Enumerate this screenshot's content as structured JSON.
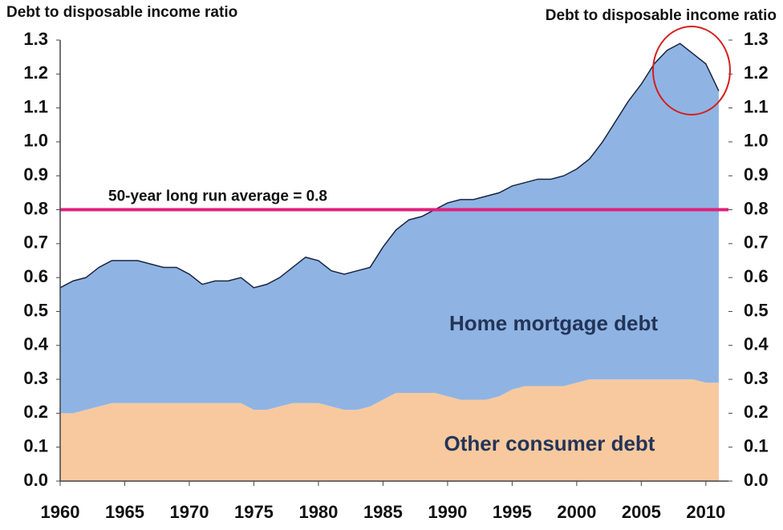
{
  "chart_data": {
    "type": "stacked_area",
    "ylabel": "Debt to disposable income ratio",
    "y2label": "Debt to disposable income ratio",
    "x": [
      1960,
      1961,
      1962,
      1963,
      1964,
      1965,
      1966,
      1967,
      1968,
      1969,
      1970,
      1971,
      1972,
      1973,
      1974,
      1975,
      1976,
      1977,
      1978,
      1979,
      1980,
      1981,
      1982,
      1983,
      1984,
      1985,
      1986,
      1987,
      1988,
      1989,
      1990,
      1991,
      1992,
      1993,
      1994,
      1995,
      1996,
      1997,
      1998,
      1999,
      2000,
      2001,
      2002,
      2003,
      2004,
      2005,
      2006,
      2007,
      2008,
      2009,
      2010,
      2011
    ],
    "series": [
      {
        "name": "Other consumer debt",
        "color": "#f8c99e",
        "values": [
          0.2,
          0.2,
          0.21,
          0.22,
          0.23,
          0.23,
          0.23,
          0.23,
          0.23,
          0.23,
          0.23,
          0.23,
          0.23,
          0.23,
          0.23,
          0.21,
          0.21,
          0.22,
          0.23,
          0.23,
          0.23,
          0.22,
          0.21,
          0.21,
          0.22,
          0.24,
          0.26,
          0.26,
          0.26,
          0.26,
          0.25,
          0.24,
          0.24,
          0.24,
          0.25,
          0.27,
          0.28,
          0.28,
          0.28,
          0.28,
          0.29,
          0.3,
          0.3,
          0.3,
          0.3,
          0.3,
          0.3,
          0.3,
          0.3,
          0.3,
          0.29,
          0.29
        ]
      },
      {
        "name": "Home mortgage debt",
        "color": "#8fb4e3",
        "values": [
          0.37,
          0.39,
          0.39,
          0.41,
          0.42,
          0.42,
          0.42,
          0.41,
          0.4,
          0.4,
          0.38,
          0.35,
          0.36,
          0.36,
          0.37,
          0.36,
          0.37,
          0.38,
          0.4,
          0.43,
          0.42,
          0.4,
          0.4,
          0.41,
          0.41,
          0.45,
          0.48,
          0.51,
          0.52,
          0.54,
          0.57,
          0.59,
          0.59,
          0.6,
          0.6,
          0.6,
          0.6,
          0.61,
          0.61,
          0.62,
          0.63,
          0.65,
          0.7,
          0.76,
          0.82,
          0.87,
          0.93,
          0.97,
          0.99,
          0.96,
          0.94,
          0.86
        ]
      }
    ],
    "reference_line": {
      "label": "50-year long run average = 0.8",
      "value": 0.8,
      "color": "#e0207a"
    },
    "xlim": [
      1960,
      2011.75
    ],
    "xticks": [
      1960,
      1965,
      1970,
      1975,
      1980,
      1985,
      1990,
      1995,
      2000,
      2005,
      2010
    ],
    "ylim": [
      0,
      1.3
    ],
    "yticks": [
      {
        "value": 0,
        "label": "0.0"
      },
      0.1,
      0.2,
      0.3,
      0.4,
      0.5,
      0.6,
      0.7,
      0.8,
      0.9,
      {
        "value": 1,
        "label": "1.0"
      },
      1.1,
      1.2,
      1.3
    ],
    "y2lim": [
      0,
      1.3
    ],
    "y2ticks": [
      {
        "value": 0,
        "label": "0.0"
      },
      0.1,
      0.2,
      0.3,
      0.4,
      0.5,
      0.6,
      0.7,
      0.8,
      0.9,
      {
        "value": 1,
        "label": "1.0"
      },
      1.1,
      1.2,
      1.3
    ]
  }
}
